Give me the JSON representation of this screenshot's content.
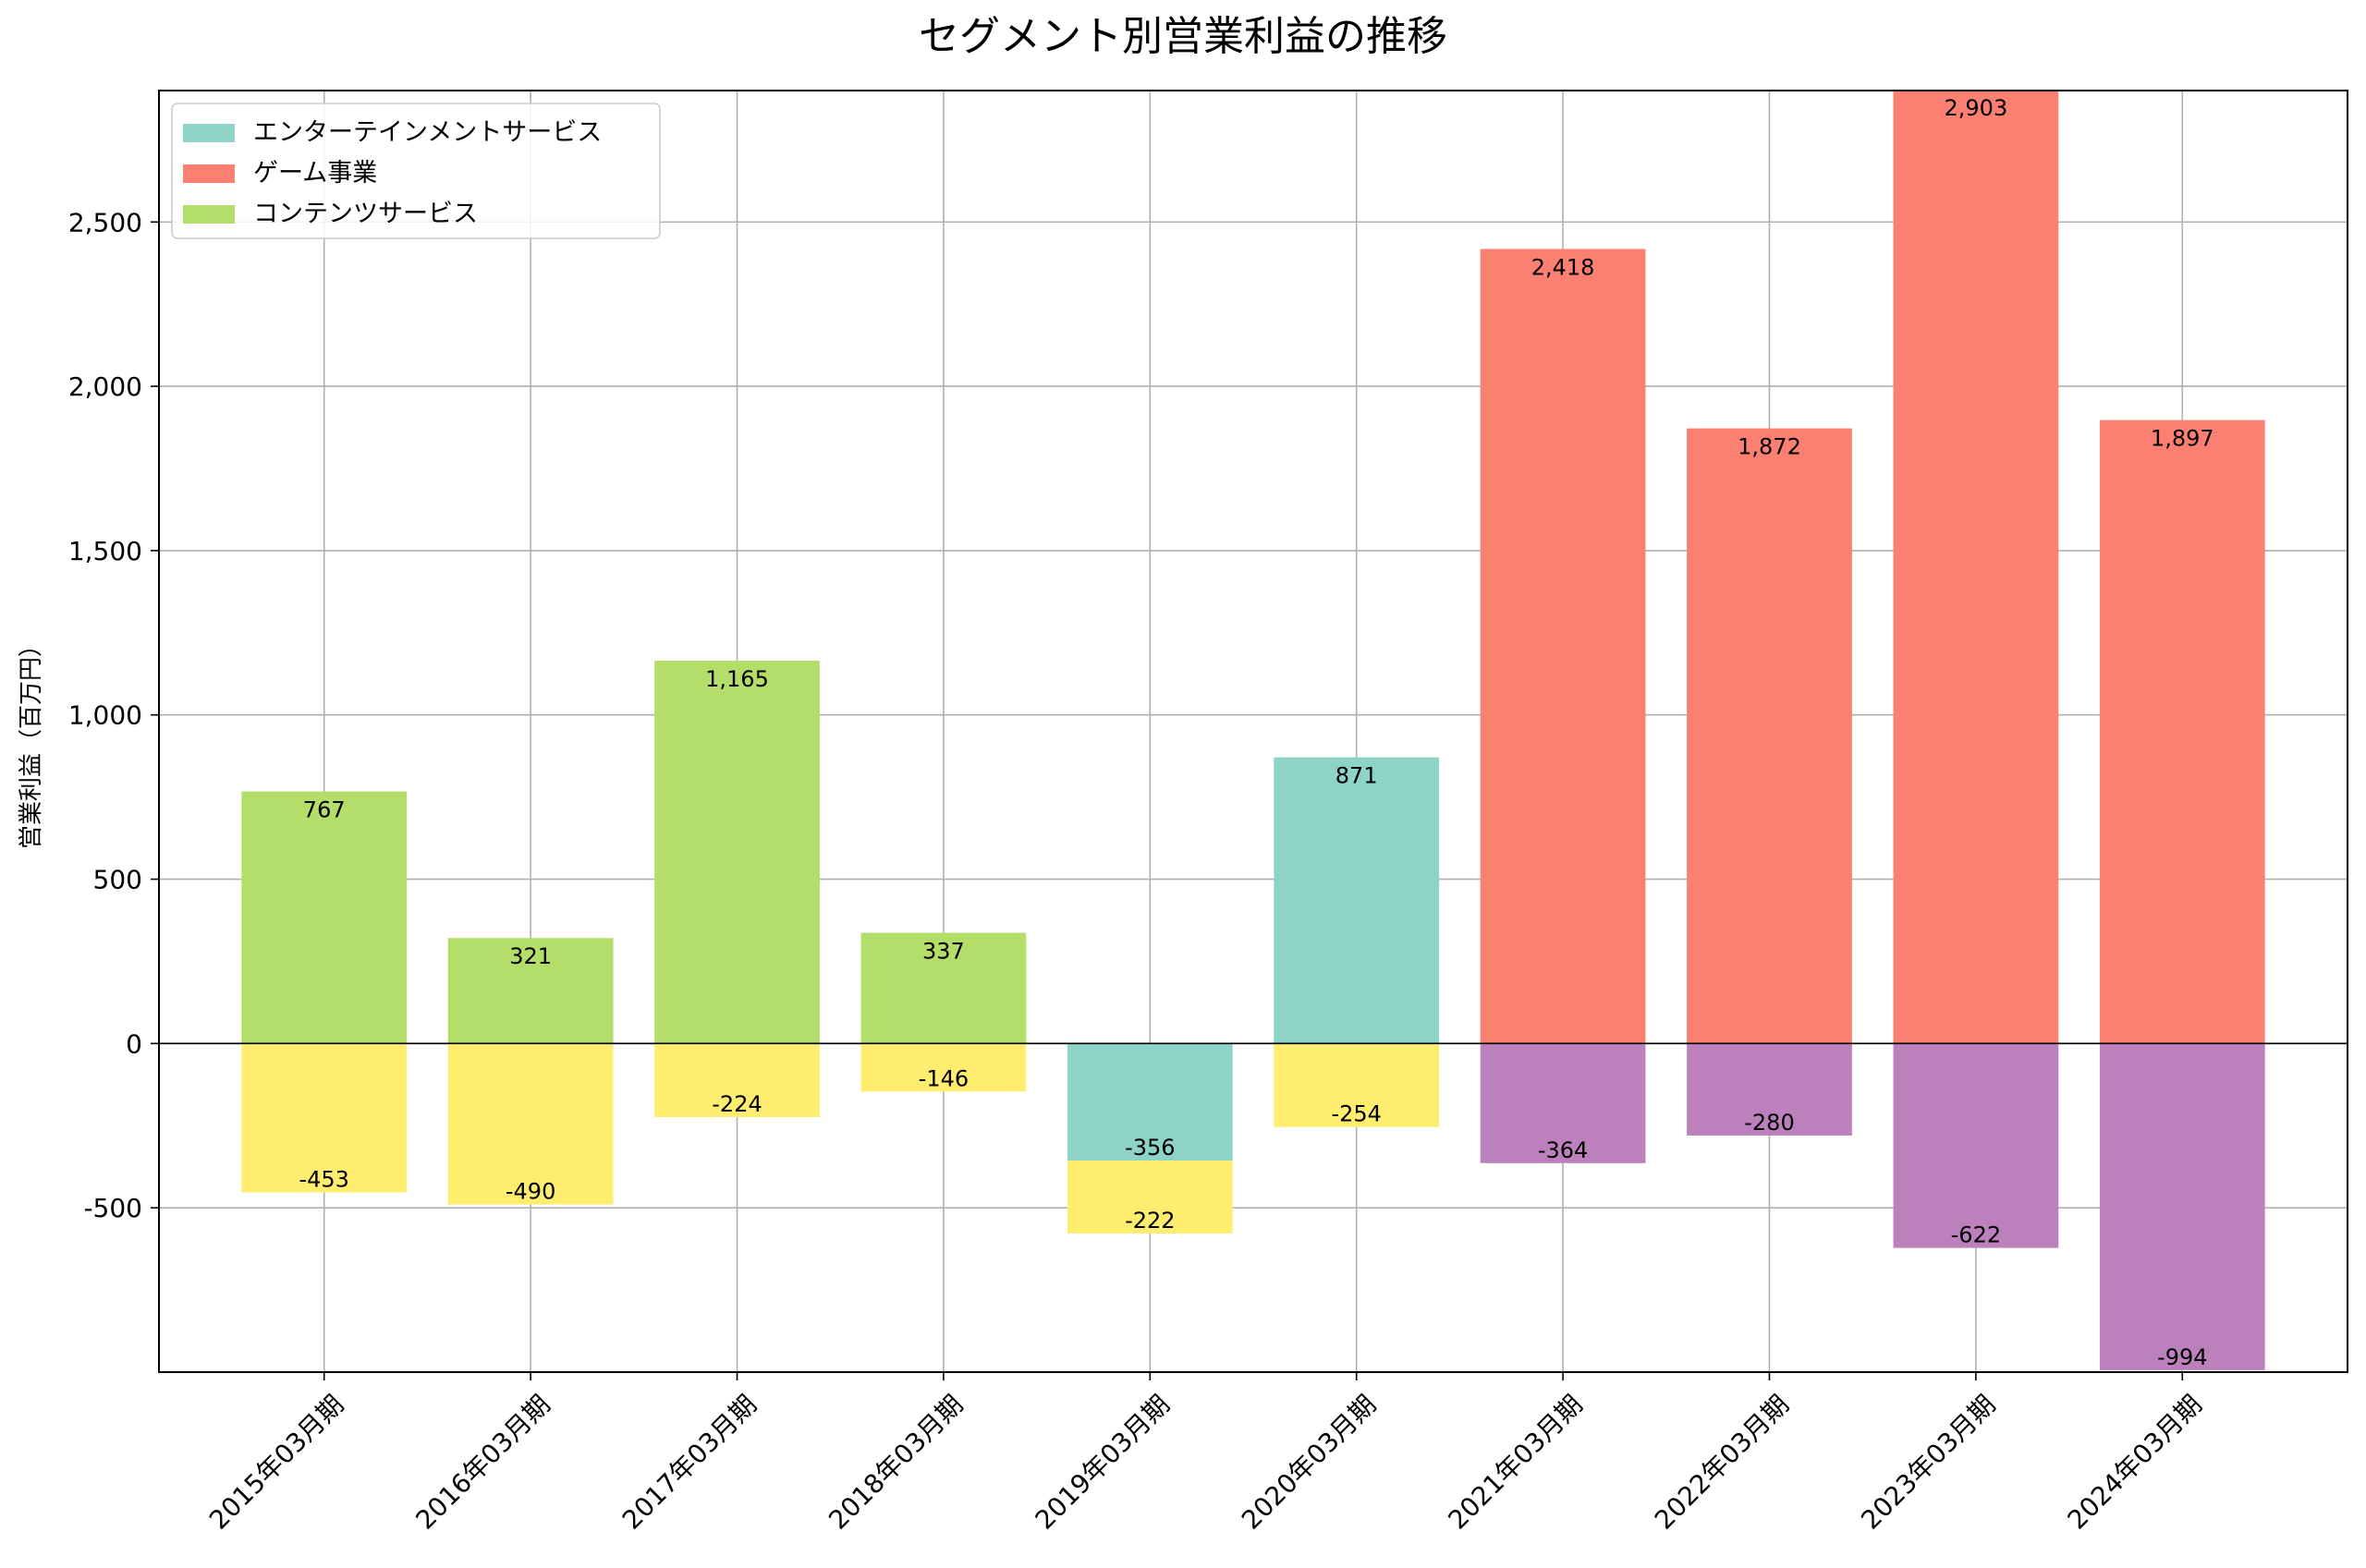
{
  "chart_data": {
    "type": "bar",
    "stacked": true,
    "title": "セグメント別営業利益の推移",
    "xlabel": "",
    "ylabel": "営業利益（百万円）",
    "ylim": [
      -1000,
      2900
    ],
    "yticks": [
      -500,
      0,
      500,
      1000,
      1500,
      2000,
      2500
    ],
    "ytick_labels": [
      "-500",
      "0",
      "500",
      "1,000",
      "1,500",
      "2,000",
      "2,500"
    ],
    "grid": true,
    "legend_position": "top-left",
    "categories": [
      "2015年03月期",
      "2016年03月期",
      "2017年03月期",
      "2018年03月期",
      "2019年03月期",
      "2020年03月期",
      "2021年03月期",
      "2022年03月期",
      "2023年03月期",
      "2024年03月期"
    ],
    "legend": [
      {
        "name": "エンターテインメントサービス",
        "color": "#8DD3C7"
      },
      {
        "name": "ゲーム事業",
        "color": "#FB8072"
      },
      {
        "name": "コンテンツサービス",
        "color": "#B3DE69"
      }
    ],
    "bars": [
      {
        "category": 0,
        "base": 0,
        "value": 767,
        "label": "767",
        "color": "#B3DE69"
      },
      {
        "category": 0,
        "base": 0,
        "value": -453,
        "label": "-453",
        "color": "#FFED6F"
      },
      {
        "category": 1,
        "base": 0,
        "value": 321,
        "label": "321",
        "color": "#B3DE69"
      },
      {
        "category": 1,
        "base": 0,
        "value": -490,
        "label": "-490",
        "color": "#FFED6F"
      },
      {
        "category": 2,
        "base": 0,
        "value": 1165,
        "label": "1,165",
        "color": "#B3DE69"
      },
      {
        "category": 2,
        "base": 0,
        "value": -224,
        "label": "-224",
        "color": "#FFED6F"
      },
      {
        "category": 3,
        "base": 0,
        "value": 337,
        "label": "337",
        "color": "#B3DE69"
      },
      {
        "category": 3,
        "base": 0,
        "value": -146,
        "label": "-146",
        "color": "#FFED6F"
      },
      {
        "category": 4,
        "base": 0,
        "value": -356,
        "label": "-356",
        "color": "#8DD3C7"
      },
      {
        "category": 4,
        "base": -356,
        "value": -222,
        "label": "-222",
        "color": "#FFED6F"
      },
      {
        "category": 5,
        "base": 0,
        "value": 871,
        "label": "871",
        "color": "#8DD3C7"
      },
      {
        "category": 5,
        "base": 0,
        "value": -254,
        "label": "-254",
        "color": "#FFED6F"
      },
      {
        "category": 6,
        "base": 0,
        "value": 2418,
        "label": "2,418",
        "color": "#FB8072"
      },
      {
        "category": 6,
        "base": 0,
        "value": -364,
        "label": "-364",
        "color": "#BC80BD"
      },
      {
        "category": 7,
        "base": 0,
        "value": 1872,
        "label": "1,872",
        "color": "#FB8072"
      },
      {
        "category": 7,
        "base": 0,
        "value": -280,
        "label": "-280",
        "color": "#BC80BD"
      },
      {
        "category": 8,
        "base": 0,
        "value": 2903,
        "label": "2,903",
        "color": "#FB8072"
      },
      {
        "category": 8,
        "base": 0,
        "value": -622,
        "label": "-622",
        "color": "#BC80BD"
      },
      {
        "category": 9,
        "base": 0,
        "value": 1897,
        "label": "1,897",
        "color": "#FB8072"
      },
      {
        "category": 9,
        "base": 0,
        "value": -994,
        "label": "-994",
        "color": "#BC80BD"
      }
    ]
  }
}
